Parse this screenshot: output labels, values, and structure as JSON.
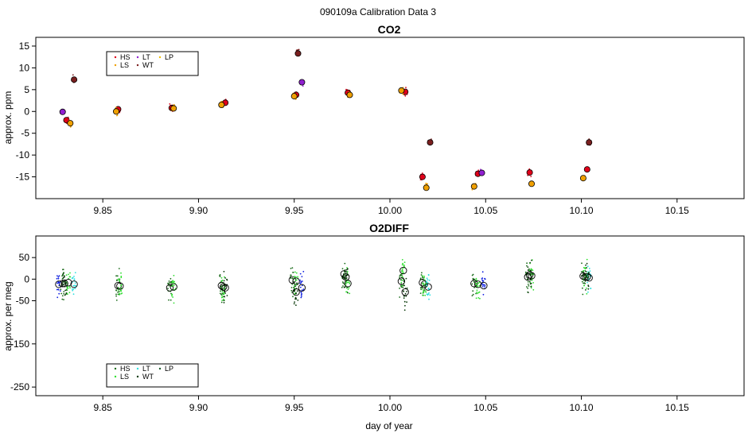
{
  "suptitle": "090109a   Calibration Data 3",
  "xlabel": "day of year",
  "chart_data": [
    {
      "type": "scatter",
      "title": "CO2",
      "ylabel": "approx. ppm",
      "xlim": [
        9.815,
        10.185
      ],
      "ylim": [
        -20,
        17
      ],
      "xticks": [
        9.85,
        9.9,
        9.95,
        10.0,
        10.05,
        10.1,
        10.15
      ],
      "xtick_labels": [
        "9.85",
        "9.90",
        "9.95",
        "10.00",
        "10.05",
        "10.10",
        "10.15"
      ],
      "yticks": [
        -15,
        -10,
        -5,
        0,
        5,
        10,
        15
      ],
      "ytick_labels": [
        "-15",
        "-10",
        "-5",
        "0",
        "5",
        "10",
        "15"
      ],
      "legend_position": "top-left",
      "legend": [
        {
          "label": "HS",
          "color": "#e0001a"
        },
        {
          "label": "LS",
          "color": "#f0a000"
        },
        {
          "label": "LT",
          "color": "#9020d0"
        },
        {
          "label": "WT",
          "color": "#7a1f1f"
        },
        {
          "label": "LP",
          "color": "#f0c000"
        }
      ],
      "series": [
        {
          "name": "HS",
          "color": "#e0001a",
          "x": [
            9.831,
            9.858,
            9.886,
            9.914,
            9.951,
            9.978,
            10.008,
            10.017,
            10.046,
            10.073,
            10.103
          ],
          "y": [
            -2.0,
            0.5,
            0.8,
            2.0,
            3.8,
            4.3,
            4.5,
            -15.0,
            -14.3,
            -14.0,
            -13.3
          ]
        },
        {
          "name": "LS",
          "color": "#f0a000",
          "x": [
            9.833,
            9.857,
            9.887,
            9.912,
            9.95,
            9.979,
            10.006,
            10.019,
            10.044,
            10.074,
            10.101
          ],
          "y": [
            -2.7,
            0.0,
            0.7,
            1.5,
            3.5,
            3.8,
            4.8,
            -17.5,
            -17.2,
            -16.6,
            -15.3
          ]
        },
        {
          "name": "LT",
          "color": "#9020d0",
          "x": [
            9.829,
            9.954,
            10.048
          ],
          "y": [
            -0.1,
            6.7,
            -14.1
          ]
        },
        {
          "name": "WT",
          "color": "#7a1f1f",
          "x": [
            9.835,
            9.952,
            10.021,
            10.104
          ],
          "y": [
            7.3,
            13.3,
            -7.1,
            -7.1
          ]
        }
      ]
    },
    {
      "type": "scatter",
      "title": "O2DIFF",
      "ylabel": "approx. per meg",
      "xlim": [
        9.815,
        10.185
      ],
      "ylim": [
        -270,
        100
      ],
      "xticks": [
        9.85,
        9.9,
        9.95,
        10.0,
        10.05,
        10.1,
        10.15
      ],
      "xtick_labels": [
        "9.85",
        "9.90",
        "9.95",
        "10.00",
        "10.05",
        "10.10",
        "10.15"
      ],
      "yticks": [
        -250,
        -150,
        -50,
        0,
        50
      ],
      "ytick_labels": [
        "-250",
        "-150",
        "-50",
        "0",
        "50"
      ],
      "legend_position": "bottom-left",
      "legend": [
        {
          "label": "HS",
          "color": "#1a6b1a"
        },
        {
          "label": "LS",
          "color": "#30e030"
        },
        {
          "label": "LT",
          "color": "#30e0e0"
        },
        {
          "label": "WT",
          "color": "#0a3a0a"
        },
        {
          "label": "LP",
          "color": "#1a5a2a"
        }
      ],
      "series": [
        {
          "name": "HS",
          "color": "#1a6b1a",
          "x": [
            9.829,
            9.858,
            9.885,
            9.912,
            9.949,
            9.976,
            10.006,
            10.017,
            10.044,
            10.072,
            10.101
          ],
          "y": [
            -10,
            -15,
            -20,
            -15,
            -2,
            12,
            -5,
            -8,
            -10,
            5,
            7
          ]
        },
        {
          "name": "LS",
          "color": "#30e030",
          "x": [
            9.832,
            9.859,
            9.887,
            9.913,
            9.951,
            9.978,
            10.007,
            10.018,
            10.046,
            10.074,
            10.102
          ],
          "y": [
            -8,
            -16,
            -18,
            -18,
            -5,
            -10,
            20,
            -12,
            -12,
            8,
            5
          ]
        },
        {
          "name": "LT",
          "color": "#30e0e0",
          "x": [
            9.835,
            10.02,
            10.104
          ],
          "y": [
            -12,
            -18,
            3
          ]
        },
        {
          "name": "WT",
          "color": "#0a3a0a",
          "x": [
            9.83,
            9.914,
            9.951,
            9.977,
            10.008,
            10.073,
            10.103
          ],
          "y": [
            -10,
            -20,
            -30,
            5,
            -30,
            10,
            5
          ]
        },
        {
          "name": "blue",
          "color": "#1020e0",
          "x": [
            9.827,
            9.954,
            10.049
          ],
          "y": [
            -12,
            -20,
            -15
          ]
        }
      ]
    }
  ]
}
